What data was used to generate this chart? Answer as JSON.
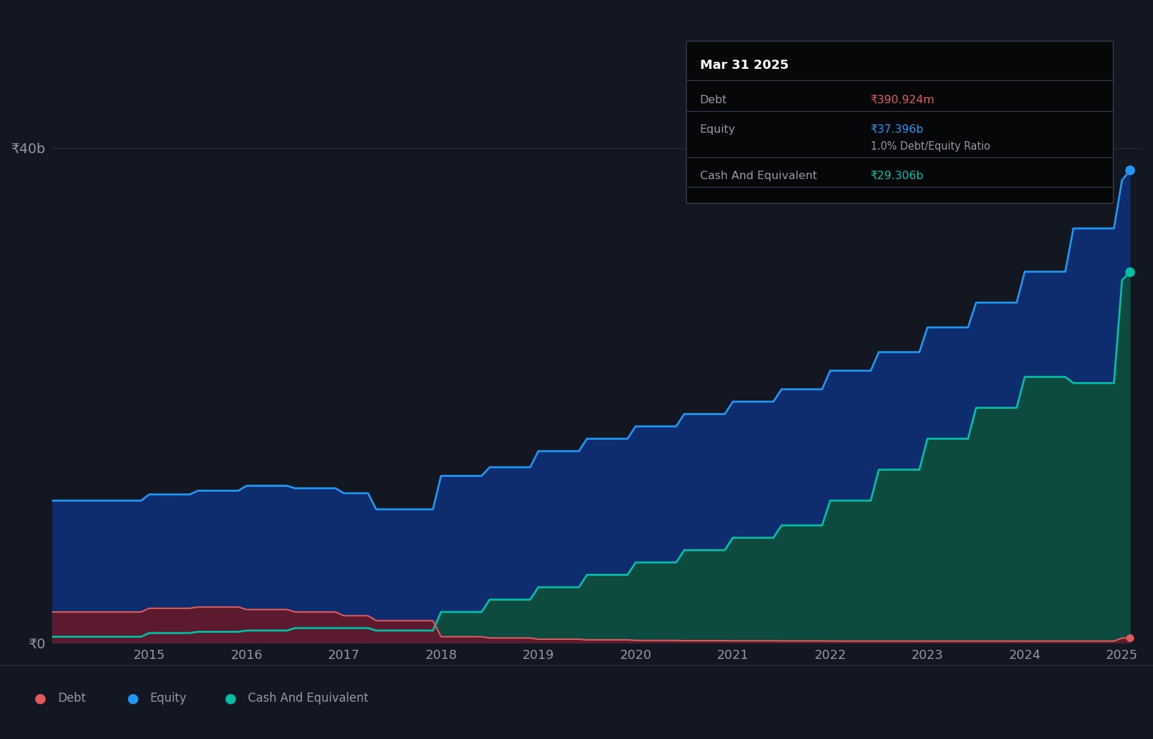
{
  "bg_color": "#131722",
  "plot_bg_color": "#131722",
  "grid_color": "#2a2e39",
  "title_text": "Mar 31 2025",
  "tooltip_values": [
    "₹390.924m",
    "₹37.396b",
    "1.0% Debt/Equity Ratio",
    "₹29.306b"
  ],
  "debt_color": "#e05c5c",
  "equity_color": "#2196f3",
  "cash_color": "#00bfa5",
  "equity_fill": "#1565c0",
  "cash_fill": "#00796b",
  "debt_fill": "#7b1a3a",
  "ylabel_color": "#9598a1",
  "ylabel_0": "₹0",
  "ylabel_40b": "₹40b",
  "x_ticks": [
    2015,
    2016,
    2017,
    2018,
    2019,
    2020,
    2021,
    2022,
    2023,
    2024,
    2025
  ],
  "years": [
    2014.0,
    2014.083,
    2014.167,
    2014.25,
    2014.333,
    2014.417,
    2014.5,
    2014.583,
    2014.667,
    2014.75,
    2014.833,
    2014.917,
    2015.0,
    2015.083,
    2015.167,
    2015.25,
    2015.333,
    2015.417,
    2015.5,
    2015.583,
    2015.667,
    2015.75,
    2015.833,
    2015.917,
    2016.0,
    2016.083,
    2016.167,
    2016.25,
    2016.333,
    2016.417,
    2016.5,
    2016.583,
    2016.667,
    2016.75,
    2016.833,
    2016.917,
    2017.0,
    2017.083,
    2017.167,
    2017.25,
    2017.333,
    2017.417,
    2017.5,
    2017.583,
    2017.667,
    2017.75,
    2017.833,
    2017.917,
    2018.0,
    2018.083,
    2018.167,
    2018.25,
    2018.333,
    2018.417,
    2018.5,
    2018.583,
    2018.667,
    2018.75,
    2018.833,
    2018.917,
    2019.0,
    2019.083,
    2019.167,
    2019.25,
    2019.333,
    2019.417,
    2019.5,
    2019.583,
    2019.667,
    2019.75,
    2019.833,
    2019.917,
    2020.0,
    2020.083,
    2020.167,
    2020.25,
    2020.333,
    2020.417,
    2020.5,
    2020.583,
    2020.667,
    2020.75,
    2020.833,
    2020.917,
    2021.0,
    2021.083,
    2021.167,
    2021.25,
    2021.333,
    2021.417,
    2021.5,
    2021.583,
    2021.667,
    2021.75,
    2021.833,
    2021.917,
    2022.0,
    2022.083,
    2022.167,
    2022.25,
    2022.333,
    2022.417,
    2022.5,
    2022.583,
    2022.667,
    2022.75,
    2022.833,
    2022.917,
    2023.0,
    2023.083,
    2023.167,
    2023.25,
    2023.333,
    2023.417,
    2023.5,
    2023.583,
    2023.667,
    2023.75,
    2023.833,
    2023.917,
    2024.0,
    2024.083,
    2024.167,
    2024.25,
    2024.333,
    2024.417,
    2024.5,
    2024.583,
    2024.667,
    2024.75,
    2024.833,
    2024.917,
    2025.0,
    2025.083
  ],
  "equity_values": [
    11.5,
    11.5,
    11.5,
    11.5,
    11.5,
    11.5,
    11.5,
    11.5,
    11.5,
    11.5,
    11.5,
    11.5,
    12.0,
    12.0,
    12.0,
    12.0,
    12.0,
    12.0,
    12.3,
    12.3,
    12.3,
    12.3,
    12.3,
    12.3,
    12.7,
    12.7,
    12.7,
    12.7,
    12.7,
    12.7,
    12.5,
    12.5,
    12.5,
    12.5,
    12.5,
    12.5,
    12.1,
    12.1,
    12.1,
    12.1,
    10.8,
    10.8,
    10.8,
    10.8,
    10.8,
    10.8,
    10.8,
    10.8,
    13.5,
    13.5,
    13.5,
    13.5,
    13.5,
    13.5,
    14.2,
    14.2,
    14.2,
    14.2,
    14.2,
    14.2,
    15.5,
    15.5,
    15.5,
    15.5,
    15.5,
    15.5,
    16.5,
    16.5,
    16.5,
    16.5,
    16.5,
    16.5,
    17.5,
    17.5,
    17.5,
    17.5,
    17.5,
    17.5,
    18.5,
    18.5,
    18.5,
    18.5,
    18.5,
    18.5,
    19.5,
    19.5,
    19.5,
    19.5,
    19.5,
    19.5,
    20.5,
    20.5,
    20.5,
    20.5,
    20.5,
    20.5,
    22.0,
    22.0,
    22.0,
    22.0,
    22.0,
    22.0,
    23.5,
    23.5,
    23.5,
    23.5,
    23.5,
    23.5,
    25.5,
    25.5,
    25.5,
    25.5,
    25.5,
    25.5,
    27.5,
    27.5,
    27.5,
    27.5,
    27.5,
    27.5,
    30.0,
    30.0,
    30.0,
    30.0,
    30.0,
    30.0,
    33.5,
    33.5,
    33.5,
    33.5,
    33.5,
    33.5,
    37.396,
    38.2
  ],
  "cash_values": [
    0.5,
    0.5,
    0.5,
    0.5,
    0.5,
    0.5,
    0.5,
    0.5,
    0.5,
    0.5,
    0.5,
    0.5,
    0.8,
    0.8,
    0.8,
    0.8,
    0.8,
    0.8,
    0.9,
    0.9,
    0.9,
    0.9,
    0.9,
    0.9,
    1.0,
    1.0,
    1.0,
    1.0,
    1.0,
    1.0,
    1.2,
    1.2,
    1.2,
    1.2,
    1.2,
    1.2,
    1.2,
    1.2,
    1.2,
    1.2,
    1.0,
    1.0,
    1.0,
    1.0,
    1.0,
    1.0,
    1.0,
    1.0,
    2.5,
    2.5,
    2.5,
    2.5,
    2.5,
    2.5,
    3.5,
    3.5,
    3.5,
    3.5,
    3.5,
    3.5,
    4.5,
    4.5,
    4.5,
    4.5,
    4.5,
    4.5,
    5.5,
    5.5,
    5.5,
    5.5,
    5.5,
    5.5,
    6.5,
    6.5,
    6.5,
    6.5,
    6.5,
    6.5,
    7.5,
    7.5,
    7.5,
    7.5,
    7.5,
    7.5,
    8.5,
    8.5,
    8.5,
    8.5,
    8.5,
    8.5,
    9.5,
    9.5,
    9.5,
    9.5,
    9.5,
    9.5,
    11.5,
    11.5,
    11.5,
    11.5,
    11.5,
    11.5,
    14.0,
    14.0,
    14.0,
    14.0,
    14.0,
    14.0,
    16.5,
    16.5,
    16.5,
    16.5,
    16.5,
    16.5,
    19.0,
    19.0,
    19.0,
    19.0,
    19.0,
    19.0,
    21.5,
    21.5,
    21.5,
    21.5,
    21.5,
    21.5,
    21.0,
    21.0,
    21.0,
    21.0,
    21.0,
    21.0,
    29.306,
    30.0
  ],
  "debt_values": [
    2.5,
    2.5,
    2.5,
    2.5,
    2.5,
    2.5,
    2.5,
    2.5,
    2.5,
    2.5,
    2.5,
    2.5,
    2.8,
    2.8,
    2.8,
    2.8,
    2.8,
    2.8,
    2.9,
    2.9,
    2.9,
    2.9,
    2.9,
    2.9,
    2.7,
    2.7,
    2.7,
    2.7,
    2.7,
    2.7,
    2.5,
    2.5,
    2.5,
    2.5,
    2.5,
    2.5,
    2.2,
    2.2,
    2.2,
    2.2,
    1.8,
    1.8,
    1.8,
    1.8,
    1.8,
    1.8,
    1.8,
    1.8,
    0.5,
    0.5,
    0.5,
    0.5,
    0.5,
    0.5,
    0.4,
    0.4,
    0.4,
    0.4,
    0.4,
    0.4,
    0.3,
    0.3,
    0.3,
    0.3,
    0.3,
    0.3,
    0.25,
    0.25,
    0.25,
    0.25,
    0.25,
    0.25,
    0.2,
    0.2,
    0.2,
    0.2,
    0.2,
    0.2,
    0.18,
    0.18,
    0.18,
    0.18,
    0.18,
    0.18,
    0.17,
    0.17,
    0.17,
    0.17,
    0.17,
    0.17,
    0.16,
    0.16,
    0.16,
    0.16,
    0.16,
    0.16,
    0.15,
    0.15,
    0.15,
    0.15,
    0.15,
    0.15,
    0.15,
    0.15,
    0.15,
    0.15,
    0.15,
    0.15,
    0.15,
    0.15,
    0.15,
    0.15,
    0.15,
    0.15,
    0.15,
    0.15,
    0.15,
    0.15,
    0.15,
    0.15,
    0.15,
    0.15,
    0.15,
    0.15,
    0.15,
    0.15,
    0.15,
    0.15,
    0.15,
    0.15,
    0.15,
    0.15,
    0.390924,
    0.4
  ],
  "ylim": [
    0,
    43
  ],
  "xlim": [
    2014.0,
    2025.2
  ],
  "legend_items": [
    "Debt",
    "Equity",
    "Cash And Equivalent"
  ],
  "legend_colors": [
    "#e05c5c",
    "#2196f3",
    "#00bfa5"
  ]
}
